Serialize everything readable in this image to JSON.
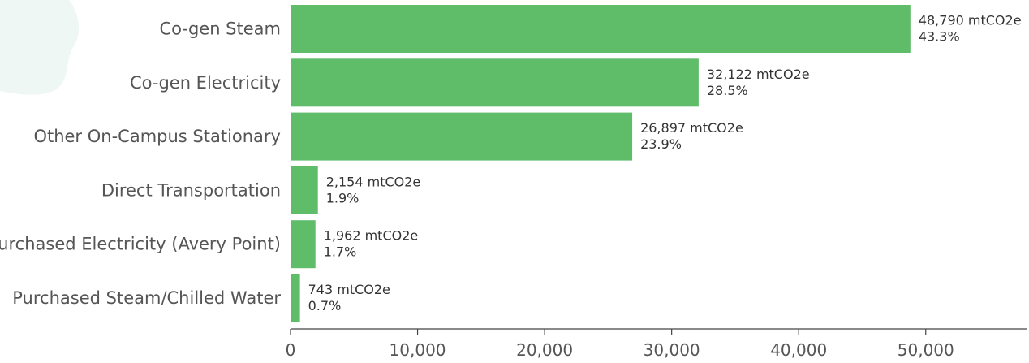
{
  "colors": {
    "bar": "#5fbd6a",
    "decor_blob": "#eef7f4",
    "axis": "#444444"
  },
  "chart_data": {
    "type": "bar",
    "orientation": "horizontal",
    "title": "",
    "xlabel": "",
    "ylabel": "",
    "categories": [
      "Co-gen Steam",
      "Co-gen Electricity",
      "Other On-Campus Stationary",
      "Direct Transportation",
      "Purchased Electricity (Avery Point)",
      "Purchased Steam/Chilled Water"
    ],
    "values": [
      48790,
      32122,
      26897,
      2154,
      1962,
      743
    ],
    "value_labels": [
      "48,790 mtCO2e",
      "32,122 mtCO2e",
      "26,897 mtCO2e",
      "2,154 mtCO2e",
      "1,962 mtCO2e",
      "743 mtCO2e"
    ],
    "percent_labels": [
      "43.3%",
      "28.5%",
      "23.9%",
      "1.9%",
      "1.7%",
      "0.7%"
    ],
    "xlim": [
      0,
      58000
    ],
    "xticks": [
      0,
      10000,
      20000,
      30000,
      40000,
      50000
    ],
    "xtick_labels": [
      "0",
      "10,000",
      "20,000",
      "30,000",
      "40,000",
      "50,000"
    ],
    "grid": false,
    "legend": "none"
  }
}
